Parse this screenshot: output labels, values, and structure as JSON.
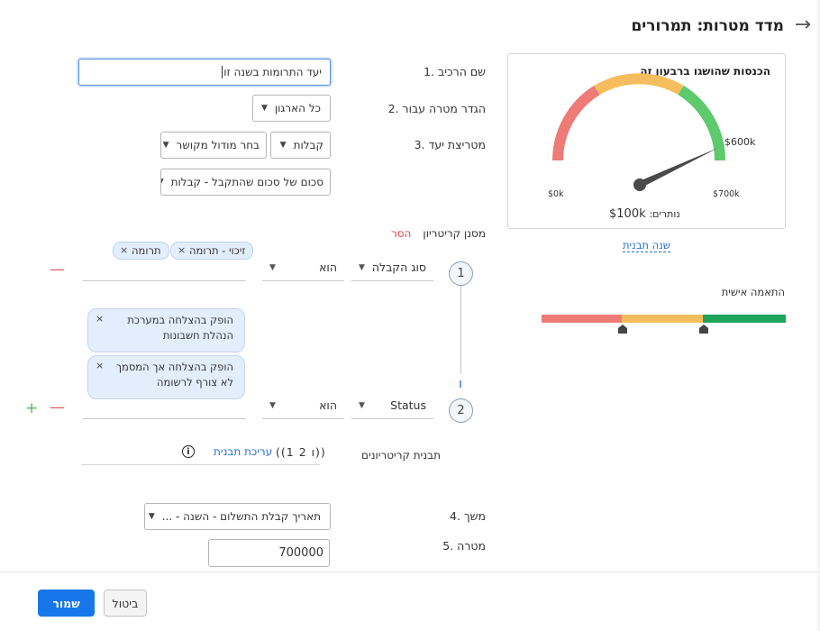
{
  "header": {
    "title": "מדד מטרות: תמרורים"
  },
  "form": {
    "widget_name": {
      "label": "1. שם הרכיב",
      "value": "יעד התרומות בשנה זו"
    },
    "define_goal": {
      "label": "2. הגדר מטרה עבור",
      "value": "כל הארגון"
    },
    "target_metric": {
      "label": "3. מטריצת יעד",
      "module": "קבלות",
      "linked_module": "בחר מודול מקושר",
      "sum_field": "סכום של סכום שהתקבל - קבלות"
    },
    "criteria": {
      "label": "מסנן קריטריון",
      "remove": "הסר",
      "rows": [
        {
          "number": "1",
          "field": "סוג הקבלה",
          "operator": "הוא",
          "chips": [
            "זיכוי - תרומה",
            "תרומה"
          ]
        },
        {
          "number": "2",
          "field": "Status",
          "operator": "הוא",
          "chips": [
            "הופק בהצלחה במערכת הנהלת חשבונות",
            "הופק בהצלחה אך המסמך לא צורף לרשומה"
          ]
        }
      ],
      "pattern_label": "תבנית קריטריונים",
      "pattern_value": "((1 ו 2))",
      "edit_pattern": "עריכת תבנית"
    },
    "duration": {
      "label": "4. משך",
      "value": "תאריך קבלת התשלום - השנה - ..."
    },
    "goal": {
      "label": "5. מטרה",
      "value": "700000"
    }
  },
  "preview": {
    "title": "הכנסות שהושגו ברבעון זה",
    "min_label": "$0k",
    "mid_label": "$600k",
    "max_label": "$700k",
    "remaining_label": "נותרים:",
    "remaining_value": "$100k",
    "template_year": "שנה תבנית",
    "personal_fit": "התאמה אישית",
    "gauge_value_fraction": 0.95,
    "colors": {
      "red": "#ee7b76",
      "orange": "#f5bd5d",
      "green": "#5dca6b",
      "bar_green": "#1ea55a"
    }
  },
  "footer": {
    "cancel": "ביטול",
    "save": "שמור"
  },
  "icons": {
    "back": "arrow-right-icon",
    "info": "info-icon",
    "close": "close-icon",
    "caret": "caret-down-icon"
  }
}
